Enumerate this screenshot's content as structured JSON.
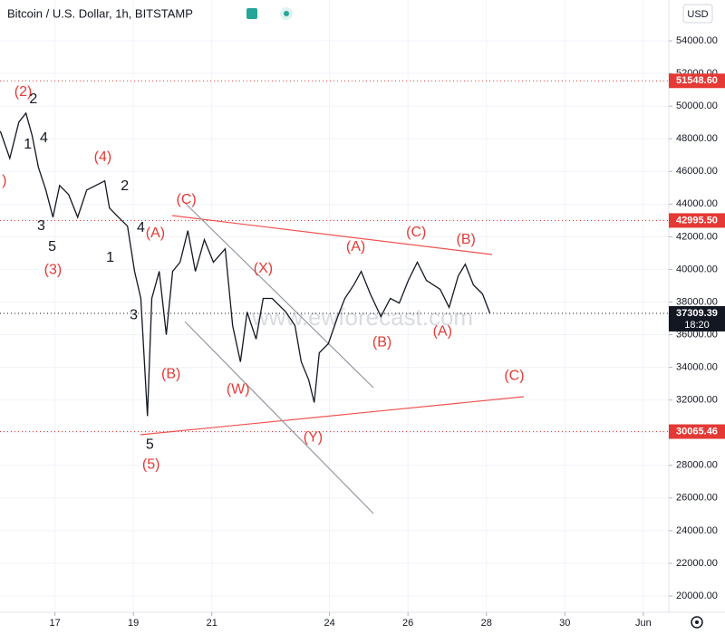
{
  "chart_data": {
    "type": "line",
    "title": "Bitcoin / U.S. Dollar, 1h, BITSTAMP",
    "currency": "USD",
    "watermark": "www.ewforecast.com",
    "xlim": [
      15.6,
      32.65
    ],
    "xticks": [
      17,
      19,
      21,
      24,
      26,
      28,
      30,
      {
        "value": 32,
        "label": "Jun"
      }
    ],
    "ylim": [
      19000,
      56500
    ],
    "yticks": [
      {
        "value": 20000,
        "label": "20000.00"
      },
      {
        "value": 22000,
        "label": "22000.00"
      },
      {
        "value": 24000,
        "label": "24000.00"
      },
      {
        "value": 26000,
        "label": "26000.00"
      },
      {
        "value": 28000,
        "label": "28000.00"
      },
      {
        "value": 30000,
        "label": "30000.00"
      },
      {
        "value": 32000,
        "label": "32000.00"
      },
      {
        "value": 34000,
        "label": "34000.00"
      },
      {
        "value": 36000,
        "label": "36000.00"
      },
      {
        "value": 38000,
        "label": "38000.00"
      },
      {
        "value": 40000,
        "label": "40000.00"
      },
      {
        "value": 42000,
        "label": "42000.00"
      },
      {
        "value": 44000,
        "label": "44000.00"
      },
      {
        "value": 46000,
        "label": "46000.00"
      },
      {
        "value": 48000,
        "label": "48000.00"
      },
      {
        "value": 50000,
        "label": "50000.00"
      },
      {
        "value": 52000,
        "label": "52000.00"
      },
      {
        "value": 54000,
        "label": "54000.00"
      }
    ],
    "grid": true,
    "series": [
      {
        "name": "BTCUSD",
        "color": "#131722",
        "x": [
          15.61,
          15.85,
          16.08,
          16.26,
          16.42,
          16.58,
          16.77,
          16.95,
          17.12,
          17.35,
          17.58,
          17.81,
          18.04,
          18.27,
          18.39,
          18.62,
          18.85,
          19.03,
          19.19,
          19.36,
          19.47,
          19.66,
          19.84,
          20.0,
          20.19,
          20.39,
          20.58,
          20.81,
          21.04,
          21.34,
          21.53,
          21.73,
          21.9,
          22.13,
          22.31,
          22.54,
          22.89,
          23.12,
          23.28,
          23.47,
          23.61,
          23.74,
          23.97,
          24.21,
          24.39,
          24.62,
          24.81,
          25.04,
          25.31,
          25.55,
          25.78,
          26.01,
          26.24,
          26.47,
          26.82,
          27.05,
          27.28,
          27.46,
          27.67,
          27.9,
          28.09
        ],
        "values": [
          48460,
          46800,
          49020,
          49570,
          48190,
          46250,
          44860,
          43200,
          45140,
          44590,
          43200,
          44860,
          45140,
          45420,
          43760,
          43200,
          42650,
          39880,
          38220,
          31020,
          38220,
          39880,
          36000,
          39880,
          40440,
          42370,
          39880,
          41820,
          40440,
          41260,
          36560,
          34340,
          37390,
          35730,
          38220,
          38220,
          37390,
          36560,
          34340,
          33240,
          31850,
          34890,
          35450,
          37110,
          38220,
          39050,
          39880,
          38500,
          37110,
          38220,
          37940,
          39330,
          40440,
          39330,
          38780,
          37670,
          39600,
          40320,
          39050,
          38500,
          37309.39
        ]
      }
    ],
    "levels": [
      {
        "value": 51548.6,
        "label": "51548.60",
        "color": "#e53935"
      },
      {
        "value": 42995.5,
        "label": "42995.50",
        "color": "#e53935"
      },
      {
        "value": 30065.46,
        "label": "30065.46",
        "color": "#e53935"
      }
    ],
    "last_price": {
      "value": 37309.39,
      "label": "37309.39",
      "time": "18:20",
      "color": "#131722"
    },
    "annotations": [
      {
        "text": "(2)",
        "x": 16.19,
        "y": 50840,
        "color": "#e53935"
      },
      {
        "text": "2",
        "x": 16.45,
        "y": 50400,
        "color": "#131722"
      },
      {
        "text": "4",
        "x": 16.72,
        "y": 48020,
        "color": "#131722"
      },
      {
        "text": "1",
        "x": 16.31,
        "y": 47630,
        "color": "#131722"
      },
      {
        "text": ")",
        "x": 15.71,
        "y": 45420,
        "color": "#e53935"
      },
      {
        "text": "3",
        "x": 16.65,
        "y": 42650,
        "color": "#131722"
      },
      {
        "text": "5",
        "x": 16.93,
        "y": 41380,
        "color": "#131722"
      },
      {
        "text": "(3)",
        "x": 16.95,
        "y": 39940,
        "color": "#e53935"
      },
      {
        "text": "(4)",
        "x": 18.22,
        "y": 46860,
        "color": "#e53935"
      },
      {
        "text": "2",
        "x": 18.78,
        "y": 45090,
        "color": "#131722"
      },
      {
        "text": "4",
        "x": 19.19,
        "y": 42540,
        "color": "#131722"
      },
      {
        "text": "(A)",
        "x": 19.56,
        "y": 42200,
        "color": "#e53935"
      },
      {
        "text": "1",
        "x": 18.41,
        "y": 40710,
        "color": "#131722"
      },
      {
        "text": "3",
        "x": 19.01,
        "y": 37170,
        "color": "#131722"
      },
      {
        "text": "(B)",
        "x": 19.96,
        "y": 33570,
        "color": "#e53935"
      },
      {
        "text": "5",
        "x": 19.42,
        "y": 29250,
        "color": "#131722"
      },
      {
        "text": "(5)",
        "x": 19.45,
        "y": 28030,
        "color": "#e53935"
      },
      {
        "text": "(C)",
        "x": 20.35,
        "y": 44250,
        "color": "#e53935"
      },
      {
        "text": "(X)",
        "x": 22.31,
        "y": 40050,
        "color": "#e53935"
      },
      {
        "text": "(W)",
        "x": 21.67,
        "y": 32630,
        "color": "#e53935"
      },
      {
        "text": "(Y)",
        "x": 23.58,
        "y": 29690,
        "color": "#e53935"
      },
      {
        "text": "(A)",
        "x": 24.67,
        "y": 41380,
        "color": "#e53935"
      },
      {
        "text": "(C)",
        "x": 26.21,
        "y": 42260,
        "color": "#e53935"
      },
      {
        "text": "(B)",
        "x": 27.48,
        "y": 41820,
        "color": "#e53935"
      },
      {
        "text": "(B)",
        "x": 25.34,
        "y": 35510,
        "color": "#e53935"
      },
      {
        "text": "(A)",
        "x": 26.88,
        "y": 36170,
        "color": "#e53935"
      },
      {
        "text": "(C)",
        "x": 28.71,
        "y": 33460,
        "color": "#e53935"
      }
    ]
  }
}
